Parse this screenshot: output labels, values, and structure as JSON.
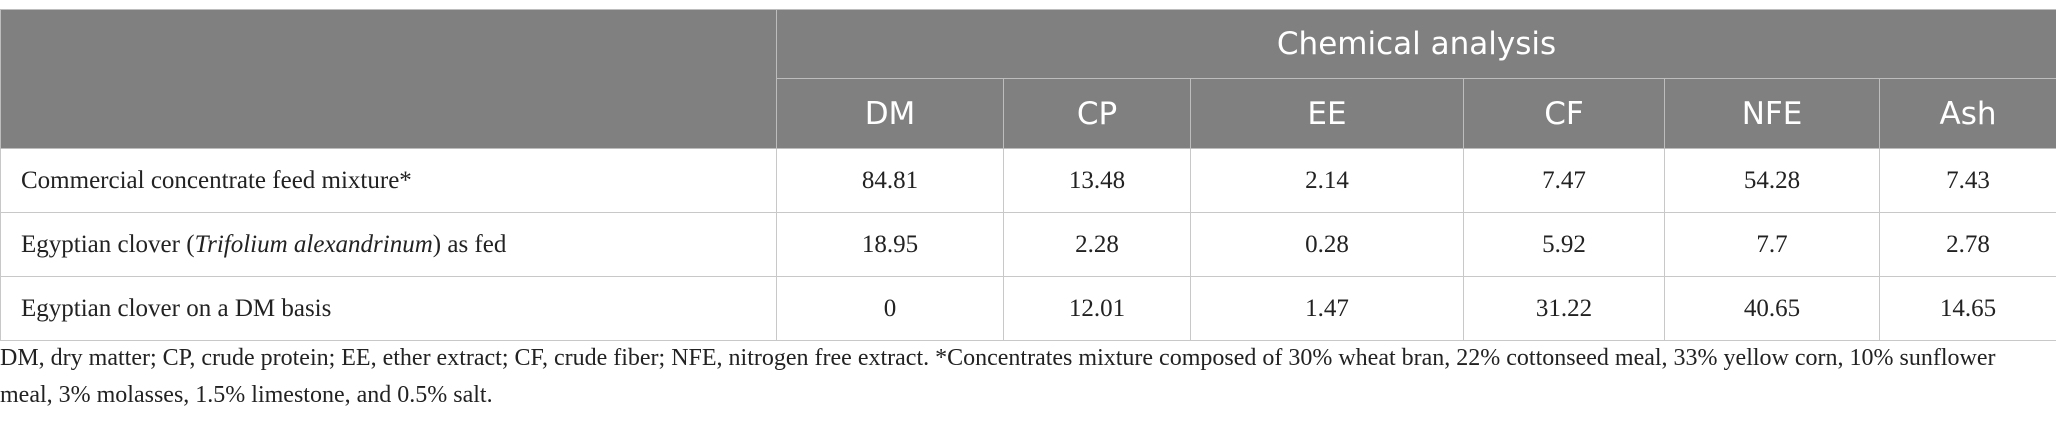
{
  "table": {
    "group_header": "Chemical analysis",
    "columns": [
      "DM",
      "CP",
      "EE",
      "CF",
      "NFE",
      "Ash"
    ],
    "rows": [
      {
        "label_parts": [
          "Commercial concentrate feed mixture*"
        ],
        "values": [
          84.81,
          13.48,
          2.14,
          7.47,
          54.28,
          7.43
        ]
      },
      {
        "label_parts": [
          "Egyptian clover (",
          "Trifolium alexandrinum",
          ") as fed"
        ],
        "values": [
          18.95,
          2.28,
          0.28,
          5.92,
          7.7,
          2.78
        ]
      },
      {
        "label_parts": [
          "Egyptian clover on a DM basis"
        ],
        "values": [
          0,
          12.01,
          1.47,
          31.22,
          40.65,
          14.65
        ]
      }
    ]
  },
  "footnote": "DM, dry matter; CP, crude protein; EE, ether extract; CF, crude fiber; NFE, nitrogen free extract. *Concentrates mixture composed of 30% wheat bran, 22% cottonseed meal, 33% yellow corn, 10% sunflower meal, 3% molasses, 1.5% limestone, and 0.5% salt."
}
